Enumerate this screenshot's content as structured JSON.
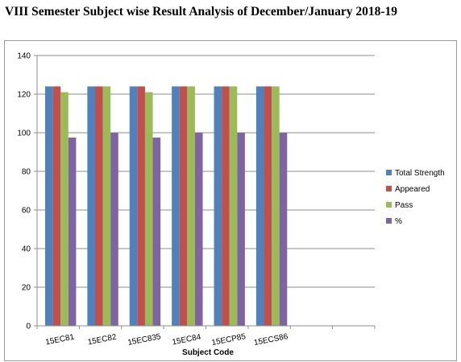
{
  "page_title": "VIII Semester Subject wise Result Analysis of December/January 2018-19",
  "chart_data": {
    "type": "bar",
    "title": "",
    "xlabel": "Subject Code",
    "ylabel": "",
    "ylim": [
      0,
      140
    ],
    "yticks": [
      0,
      20,
      40,
      60,
      80,
      100,
      120,
      140
    ],
    "grid": true,
    "legend_position": "right",
    "categories": [
      "15EC81",
      "15EC82",
      "15EC835",
      "15EC84",
      "15ECP85",
      "15ECS86",
      "",
      ""
    ],
    "series": [
      {
        "name": "Total Strength",
        "color": "#4F81BD",
        "values": [
          124,
          124,
          124,
          124,
          124,
          124,
          null,
          null
        ]
      },
      {
        "name": "Appeared",
        "color": "#C0504D",
        "values": [
          124,
          124,
          124,
          124,
          124,
          124,
          null,
          null
        ]
      },
      {
        "name": "Pass",
        "color": "#9BBB59",
        "values": [
          121,
          124,
          121,
          124,
          124,
          124,
          null,
          null
        ]
      },
      {
        "name": "%",
        "color": "#8064A2",
        "values": [
          97.5,
          100,
          97.5,
          100,
          100,
          100,
          null,
          null
        ]
      }
    ]
  }
}
